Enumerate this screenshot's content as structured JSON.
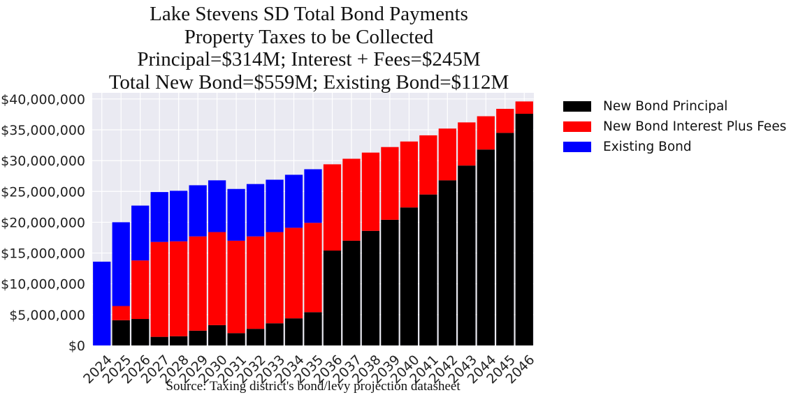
{
  "title_lines": [
    "Lake Stevens SD Total Bond Payments",
    "Property Taxes to be Collected",
    "Principal=$314M; Interest + Fees=$245M",
    "Total New Bond=$559M; Existing Bond=$112M"
  ],
  "source": "Source: Taxing district's bond/levy projection datasheet",
  "chart_data": {
    "type": "bar",
    "stacked": true,
    "categories": [
      "2024",
      "2025",
      "2026",
      "2027",
      "2028",
      "2029",
      "2030",
      "2031",
      "2032",
      "2033",
      "2034",
      "2035",
      "2036",
      "2037",
      "2038",
      "2039",
      "2040",
      "2041",
      "2042",
      "2043",
      "2044",
      "2045",
      "2046"
    ],
    "series": [
      {
        "name": "New Bond Principal",
        "color": "#000000",
        "values": [
          0,
          4100000,
          4300000,
          1400000,
          1500000,
          2400000,
          3300000,
          2000000,
          2700000,
          3600000,
          4400000,
          5400000,
          15400000,
          17000000,
          18600000,
          20400000,
          22400000,
          24500000,
          26800000,
          29200000,
          31800000,
          34500000,
          37600000
        ]
      },
      {
        "name": "New Bond Interest Plus Fees",
        "color": "#ff0000",
        "values": [
          0,
          2300000,
          9500000,
          15400000,
          15400000,
          15300000,
          15100000,
          15000000,
          15000000,
          14800000,
          14700000,
          14500000,
          14000000,
          13300000,
          12700000,
          11800000,
          10700000,
          9600000,
          8400000,
          7000000,
          5400000,
          3900000,
          2000000
        ]
      },
      {
        "name": "Existing Bond",
        "color": "#0000ff",
        "values": [
          13600000,
          13600000,
          8900000,
          8100000,
          8200000,
          8300000,
          8400000,
          8400000,
          8500000,
          8500000,
          8600000,
          8700000,
          0,
          0,
          0,
          0,
          0,
          0,
          0,
          0,
          0,
          0,
          0
        ]
      }
    ],
    "y_ticks": [
      0,
      5000000,
      10000000,
      15000000,
      20000000,
      25000000,
      30000000,
      35000000,
      40000000
    ],
    "y_tick_labels": [
      "$0",
      "$5,000,000",
      "$10,000,000",
      "$15,000,000",
      "$20,000,000",
      "$25,000,000",
      "$30,000,000",
      "$35,000,000",
      "$40,000,000"
    ],
    "ylim": [
      0,
      41000000
    ],
    "grid": true,
    "legend_position": "outside-right"
  }
}
